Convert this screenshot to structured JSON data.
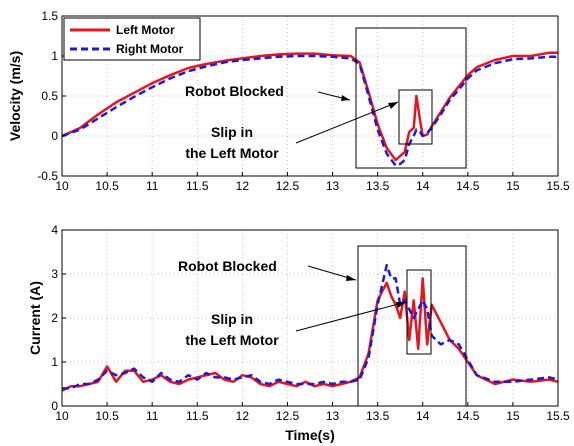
{
  "colors": {
    "left": "#e8141c",
    "right": "#1a1adc"
  },
  "chart_data": [
    {
      "type": "line",
      "xlabel": "",
      "ylabel": "Velocity (m/s)",
      "xlim": [
        10,
        15.5
      ],
      "ylim": [
        -0.5,
        1.5
      ],
      "xticks": [
        "10",
        "10.5",
        "11",
        "11.5",
        "12",
        "12.5",
        "13",
        "13.5",
        "14",
        "14.5",
        "15",
        "15.5"
      ],
      "yticks": [
        "-0.5",
        "0",
        "0.5",
        "1",
        "1.5"
      ],
      "grid": true,
      "legend": {
        "position": "top-left",
        "entries": [
          "Left Motor",
          "Right Motor"
        ]
      },
      "annotations": [
        {
          "text": "Robot Blocked"
        },
        {
          "text": "Slip in"
        },
        {
          "text": "the Left Motor"
        }
      ],
      "series": [
        {
          "name": "Left Motor",
          "x": [
            10,
            10.2,
            10.4,
            10.6,
            10.8,
            11,
            11.2,
            11.4,
            11.6,
            11.8,
            12,
            12.2,
            12.4,
            12.6,
            12.8,
            13,
            13.2,
            13.3,
            13.4,
            13.5,
            13.6,
            13.7,
            13.75,
            13.8,
            13.85,
            13.9,
            13.93,
            13.97,
            14,
            14.05,
            14.1,
            14.2,
            14.3,
            14.4,
            14.5,
            14.6,
            14.8,
            15,
            15.2,
            15.4,
            15.5
          ],
          "values": [
            0,
            0.1,
            0.27,
            0.42,
            0.54,
            0.66,
            0.76,
            0.85,
            0.9,
            0.94,
            0.97,
            1.0,
            1.02,
            1.03,
            1.03,
            1.01,
            1.0,
            0.92,
            0.55,
            0.15,
            -0.15,
            -0.3,
            -0.25,
            -0.2,
            0.05,
            0.1,
            0.5,
            0.2,
            0.0,
            0.02,
            0.12,
            0.3,
            0.48,
            0.62,
            0.76,
            0.86,
            0.95,
            1.0,
            1.0,
            1.04,
            1.04
          ]
        },
        {
          "name": "Right Motor",
          "x": [
            10,
            10.2,
            10.4,
            10.6,
            10.8,
            11,
            11.2,
            11.4,
            11.6,
            11.8,
            12,
            12.2,
            12.4,
            12.6,
            12.8,
            13,
            13.2,
            13.3,
            13.4,
            13.5,
            13.6,
            13.7,
            13.75,
            13.8,
            13.85,
            13.9,
            13.93,
            13.97,
            14,
            14.05,
            14.1,
            14.2,
            14.3,
            14.4,
            14.5,
            14.6,
            14.8,
            15,
            15.2,
            15.4,
            15.5
          ],
          "values": [
            0,
            0.08,
            0.22,
            0.36,
            0.49,
            0.61,
            0.72,
            0.81,
            0.87,
            0.92,
            0.95,
            0.97,
            0.99,
            1.0,
            1.0,
            0.99,
            0.97,
            0.9,
            0.5,
            0.08,
            -0.22,
            -0.37,
            -0.35,
            -0.3,
            -0.1,
            0.0,
            0.08,
            0.05,
            0.0,
            0.04,
            0.1,
            0.27,
            0.45,
            0.58,
            0.72,
            0.82,
            0.91,
            0.96,
            0.97,
            0.99,
            0.99
          ]
        }
      ]
    },
    {
      "type": "line",
      "xlabel": "Time(s)",
      "ylabel": "Current (A)",
      "xlim": [
        10,
        15.5
      ],
      "ylim": [
        0,
        4
      ],
      "xticks": [
        "10",
        "10.5",
        "11",
        "11.5",
        "12",
        "12.5",
        "13",
        "13.5",
        "14",
        "14.5",
        "15",
        "15.5"
      ],
      "yticks": [
        "0",
        "1",
        "2",
        "3",
        "4"
      ],
      "grid": true,
      "annotations": [
        {
          "text": "Robot Blocked"
        },
        {
          "text": "Slip in"
        },
        {
          "text": "the Left Motor"
        }
      ],
      "series": [
        {
          "name": "Left Motor",
          "x": [
            10,
            10.1,
            10.2,
            10.3,
            10.4,
            10.5,
            10.6,
            10.7,
            10.8,
            10.9,
            11,
            11.1,
            11.2,
            11.3,
            11.4,
            11.5,
            11.6,
            11.7,
            11.8,
            11.9,
            12,
            12.1,
            12.2,
            12.3,
            12.4,
            12.5,
            12.6,
            12.7,
            12.8,
            12.9,
            13,
            13.1,
            13.2,
            13.3,
            13.4,
            13.5,
            13.6,
            13.65,
            13.7,
            13.75,
            13.8,
            13.85,
            13.9,
            13.95,
            14,
            14.05,
            14.1,
            14.2,
            14.3,
            14.4,
            14.5,
            14.6,
            14.8,
            15,
            15.2,
            15.4,
            15.5
          ],
          "values": [
            0.35,
            0.45,
            0.45,
            0.5,
            0.55,
            0.9,
            0.55,
            0.8,
            0.8,
            0.55,
            0.6,
            0.7,
            0.55,
            0.5,
            0.6,
            0.65,
            0.7,
            0.75,
            0.6,
            0.55,
            0.7,
            0.65,
            0.5,
            0.45,
            0.55,
            0.5,
            0.45,
            0.55,
            0.45,
            0.5,
            0.45,
            0.5,
            0.55,
            0.65,
            1.2,
            2.4,
            2.8,
            2.5,
            2.3,
            2.0,
            2.6,
            1.5,
            2.4,
            1.3,
            2.9,
            1.4,
            2.3,
            1.9,
            1.5,
            1.3,
            1.0,
            0.7,
            0.5,
            0.6,
            0.55,
            0.6,
            0.55
          ]
        },
        {
          "name": "Right Motor",
          "x": [
            10,
            10.1,
            10.2,
            10.3,
            10.4,
            10.5,
            10.6,
            10.7,
            10.8,
            10.9,
            11,
            11.1,
            11.2,
            11.3,
            11.4,
            11.5,
            11.6,
            11.7,
            11.8,
            11.9,
            12,
            12.1,
            12.2,
            12.3,
            12.4,
            12.5,
            12.6,
            12.7,
            12.8,
            12.9,
            13,
            13.1,
            13.2,
            13.3,
            13.4,
            13.5,
            13.6,
            13.65,
            13.7,
            13.75,
            13.8,
            13.85,
            13.9,
            13.95,
            14,
            14.05,
            14.1,
            14.2,
            14.3,
            14.4,
            14.5,
            14.6,
            14.8,
            15,
            15.2,
            15.4,
            15.5
          ],
          "values": [
            0.4,
            0.4,
            0.5,
            0.5,
            0.6,
            0.8,
            0.7,
            0.75,
            0.85,
            0.65,
            0.55,
            0.75,
            0.6,
            0.55,
            0.7,
            0.6,
            0.75,
            0.65,
            0.65,
            0.6,
            0.65,
            0.7,
            0.55,
            0.5,
            0.6,
            0.55,
            0.5,
            0.5,
            0.5,
            0.55,
            0.5,
            0.55,
            0.55,
            0.6,
            1.1,
            2.3,
            3.2,
            2.9,
            2.9,
            2.3,
            2.4,
            2.2,
            2.0,
            2.2,
            2.4,
            2.2,
            1.6,
            1.4,
            1.5,
            1.4,
            1.05,
            0.7,
            0.55,
            0.55,
            0.6,
            0.65,
            0.6
          ]
        }
      ]
    }
  ]
}
